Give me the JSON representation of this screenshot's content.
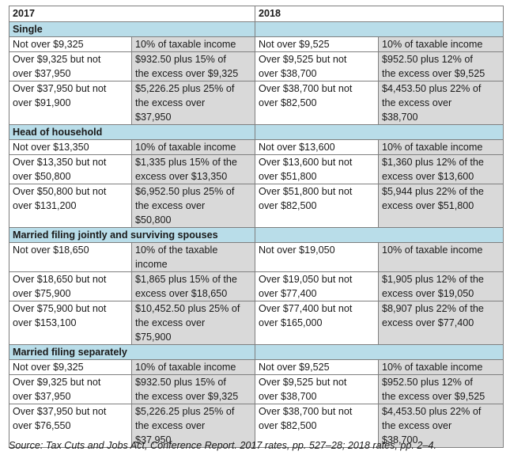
{
  "header": {
    "col_2017": "2017",
    "col_2018": "2018"
  },
  "sections": [
    {
      "title": "Single",
      "rows": [
        {
          "a": "Not over $9,325",
          "b": "10% of taxable income",
          "c": "Not over $9,525",
          "d": "10% of taxable income"
        },
        {
          "a": "Over $9,325 but not\nover $37,950",
          "b": "$932.50 plus 15% of\nthe excess over $9,325",
          "c": "Over $9,525 but not\nover $38,700",
          "d": "$952.50 plus 12% of\nthe excess over $9,525"
        },
        {
          "a": "Over $37,950 but not\nover $91,900",
          "b": "$5,226.25 plus 25% of\nthe    excess over\n$37,950",
          "c": "Over $38,700 but not\nover $82,500",
          "d": "$4,453.50 plus 22% of\nthe excess over\n$38,700"
        }
      ]
    },
    {
      "title": "Head of household",
      "rows": [
        {
          "a": "Not over $13,350",
          "b": "10% of taxable income",
          "c": "Not over $13,600",
          "d": "10% of taxable income"
        },
        {
          "a": "Over $13,350 but not\nover $50,800",
          "b": "$1,335 plus 15% of the\nexcess over $13,350",
          "c": "Over $13,600 but not\nover $51,800",
          "d": "$1,360 plus 12% of the\nexcess over $13,600"
        },
        {
          "a": "Over $50,800 but not\nover $131,200",
          "b": "$6,952.50 plus 25% of\nthe excess over\n$50,800",
          "c": "Over $51,800 but not\nover $82,500",
          "d": "$5,944 plus 22% of the\nexcess over $51,800"
        }
      ]
    },
    {
      "title": "Married filing jointly and surviving spouses",
      "rows": [
        {
          "a": "Not over $18,650",
          "b": "10% of the taxable\nincome",
          "c": "Not over $19,050",
          "d": "10% of taxable income"
        },
        {
          "a": "Over $18,650 but not\nover $75,900",
          "b": "$1,865 plus 15% of the\nexcess over $18,650",
          "c": "Over $19,050 but not\nover $77,400",
          "d": "$1,905 plus 12% of the\nexcess over $19,050"
        },
        {
          "a": "Over $75,900 but not\nover $153,100",
          "b": "$10,452.50 plus 25% of\nthe excess over\n$75,900",
          "c": "Over $77,400 but not\nover $165,000",
          "d": "$8,907 plus 22% of the\nexcess over $77,400"
        }
      ]
    },
    {
      "title": "Married filing separately",
      "rows": [
        {
          "a": "Not over $9,325",
          "b": "10% of taxable income",
          "c": "Not over $9,525",
          "d": "10% of taxable income"
        },
        {
          "a": "Over $9,325 but not\nover $37,950",
          "b": "$932.50 plus 15% of\nthe excess over $9,325",
          "c": "Over $9,525 but not\nover $38,700",
          "d": "$952.50 plus 12% of\nthe excess over $9,525"
        },
        {
          "a": "Over $37,950 but not\nover $76,550",
          "b": "$5,226.25 plus 25% of\nthe excess over\n$37,950",
          "c": "Over $38,700 but not\nover $82,500",
          "d": "$4,453.50 plus 22% of\nthe excess over\n$38,700"
        }
      ]
    }
  ],
  "source": "Source: Tax Cuts and Jobs Act, Conference Report. 2017 rates, pp. 527–28; 2018 rates, pp. 2–4.",
  "colors": {
    "section_fill": "#b9dde9",
    "rate_fill": "#d9d9d9",
    "border": "#7f7f7f"
  }
}
